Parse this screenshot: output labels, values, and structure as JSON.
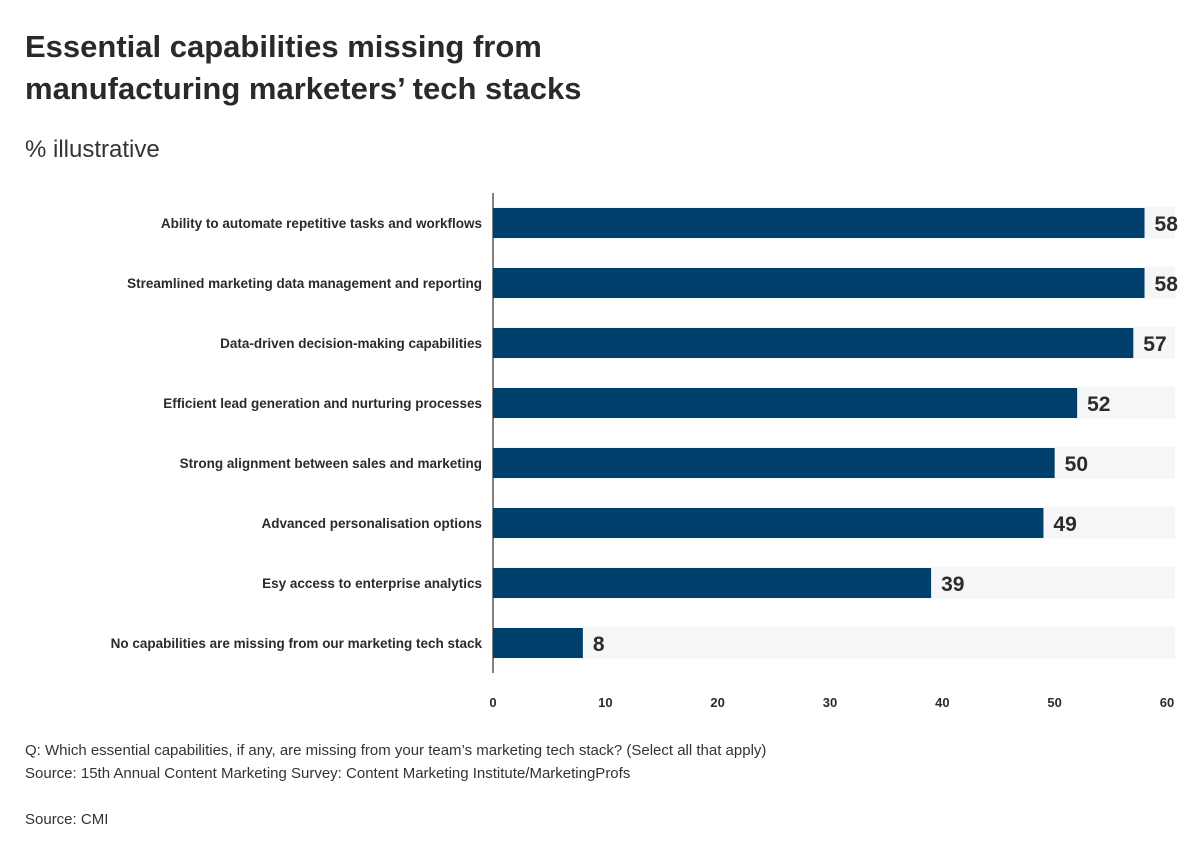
{
  "title_line1": "Essential capabilities missing from",
  "title_line2": "manufacturing marketers’ tech stacks",
  "subtitle": "% illustrative",
  "footnote_question": "Q: Which essential capabilities, if any, are missing from your team’s marketing tech stack? (Select all that apply)",
  "footnote_source": "Source: 15th Annual Content Marketing Survey: Content Marketing Institute/MarketingProfs",
  "source": "Source: CMI",
  "colors": {
    "bar": "#003f6b",
    "track": "#f4f6f8",
    "axis": "#333333"
  },
  "chart_data": {
    "type": "bar",
    "orientation": "horizontal",
    "categories": [
      "Ability to automate repetitive tasks and workflows",
      "Streamlined marketing data management and reporting",
      "Data-driven decision-making capabilities",
      "Efficient lead generation and nurturing processes",
      "Strong alignment between sales and marketing",
      "Advanced personalisation options",
      "Esy access to enterprise analytics",
      "No capabilities are missing from our marketing tech stack"
    ],
    "values": [
      58,
      58,
      57,
      52,
      50,
      49,
      39,
      8
    ],
    "xlim": [
      0,
      60
    ],
    "xticks": [
      0,
      10,
      20,
      30,
      40,
      50,
      60
    ],
    "grid": false,
    "data_labels": true
  }
}
